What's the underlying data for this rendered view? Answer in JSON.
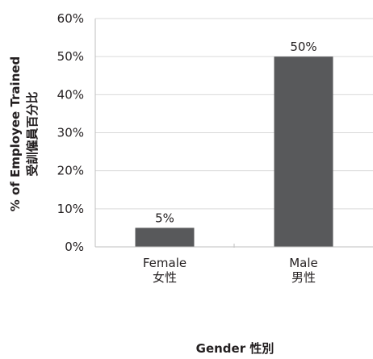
{
  "chart_data": {
    "type": "bar",
    "categories": [
      "Female\n女性",
      "Male\n男性"
    ],
    "values": [
      5,
      50
    ],
    "data_labels": [
      "5%",
      "50%"
    ],
    "ylabel_line1": "% of Employee Trained",
    "ylabel_line2": "受訓僱員百分比",
    "xlabel": "Gender 性別",
    "ylim": [
      0,
      60
    ],
    "yticks": [
      0,
      10,
      20,
      30,
      40,
      50,
      60
    ],
    "ytick_labels": [
      "0%",
      "10%",
      "20%",
      "30%",
      "40%",
      "50%",
      "60%"
    ],
    "grid": true,
    "colors": {
      "bar": "#58595b",
      "grid": "#d9d9d9",
      "axis": "#bfbfbf",
      "text": "#231f20"
    }
  }
}
